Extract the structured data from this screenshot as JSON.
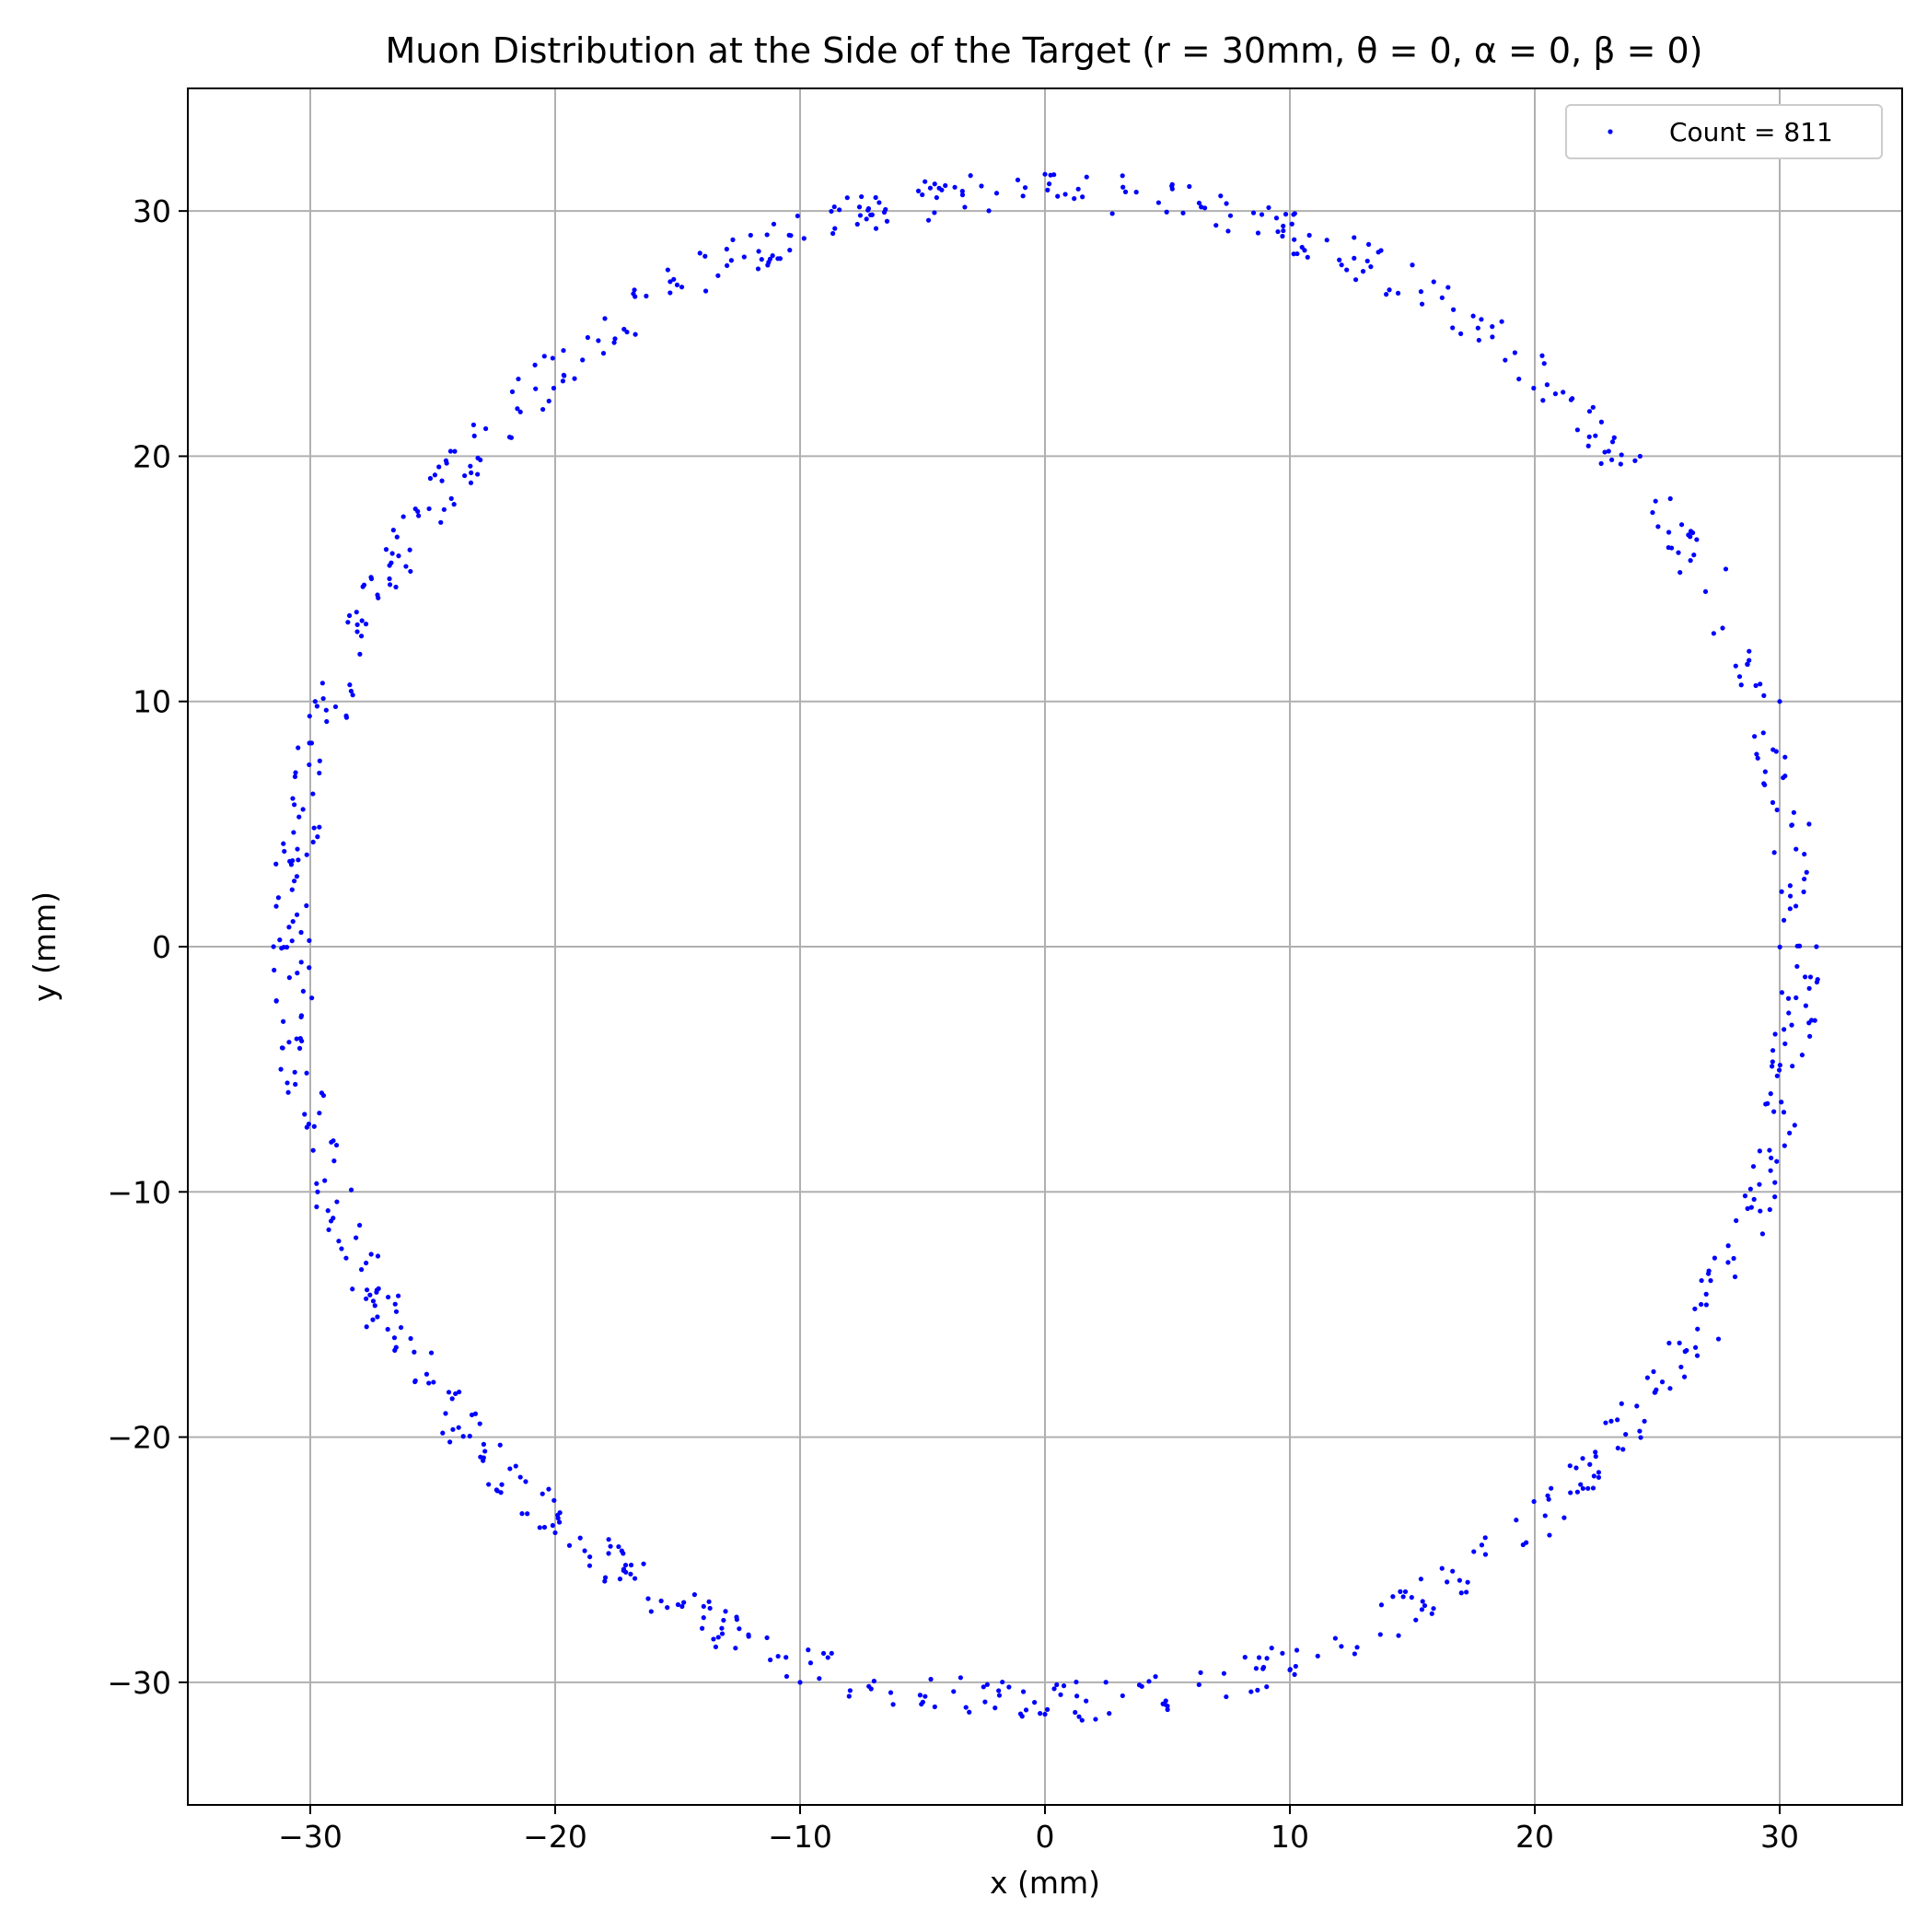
{
  "chart_data": {
    "type": "scatter",
    "title": "Muon Distribution at the Side of the Target (r = 30mm, θ = 0, α = 0, β = 0)",
    "xlabel": "x (mm)",
    "ylabel": "y (mm)",
    "xlim": [
      -35,
      35
    ],
    "ylim": [
      -35,
      35
    ],
    "xticks": [
      -30,
      -20,
      -10,
      0,
      10,
      20,
      30
    ],
    "yticks": [
      -30,
      -20,
      -10,
      0,
      10,
      20,
      30
    ],
    "xtick_labels": [
      "−30",
      "−20",
      "−10",
      "0",
      "10",
      "20",
      "30"
    ],
    "ytick_labels": [
      "−30",
      "−20",
      "−10",
      "0",
      "10",
      "20",
      "30"
    ],
    "grid": true,
    "legend_position": "top-right",
    "series": [
      {
        "name": "Count = 811",
        "color": "#0000ff",
        "marker": "dot",
        "count": 811,
        "ring_radius_range": [
          30.0,
          31.6
        ],
        "sample_points": [
          [
            -31.5,
            0.0
          ],
          [
            -31.3,
            2.0
          ],
          [
            -31.1,
            4.2
          ],
          [
            -30.6,
            7.1
          ],
          [
            -29.8,
            10.0
          ],
          [
            -28.4,
            13.5
          ],
          [
            -26.9,
            16.2
          ],
          [
            -24.1,
            20.2
          ],
          [
            -20.1,
            24.0
          ],
          [
            -15.4,
            27.6
          ],
          [
            -10.1,
            29.8
          ],
          [
            -4.9,
            31.2
          ],
          [
            0.0,
            31.5
          ],
          [
            5.2,
            30.9
          ],
          [
            10.2,
            29.9
          ],
          [
            15.0,
            27.8
          ],
          [
            20.3,
            24.1
          ],
          [
            24.3,
            20.0
          ],
          [
            27.8,
            15.4
          ],
          [
            30.0,
            10.0
          ],
          [
            31.2,
            5.0
          ],
          [
            31.5,
            0.0
          ],
          [
            31.3,
            -3.0
          ],
          [
            30.4,
            -7.6
          ],
          [
            29.8,
            -10.2
          ],
          [
            27.5,
            -16.0
          ],
          [
            23.6,
            -20.5
          ],
          [
            20.6,
            -24.0
          ],
          [
            15.8,
            -27.2
          ],
          [
            10.0,
            -29.5
          ],
          [
            4.9,
            -30.9
          ],
          [
            0.0,
            -31.3
          ],
          [
            -4.5,
            -31.0
          ],
          [
            -10.0,
            -30.0
          ],
          [
            -14.0,
            -27.8
          ],
          [
            -20.0,
            -23.9
          ],
          [
            -24.3,
            -20.2
          ],
          [
            -27.7,
            -15.5
          ],
          [
            -29.7,
            -10.0
          ],
          [
            -31.2,
            -5.0
          ]
        ]
      }
    ]
  }
}
